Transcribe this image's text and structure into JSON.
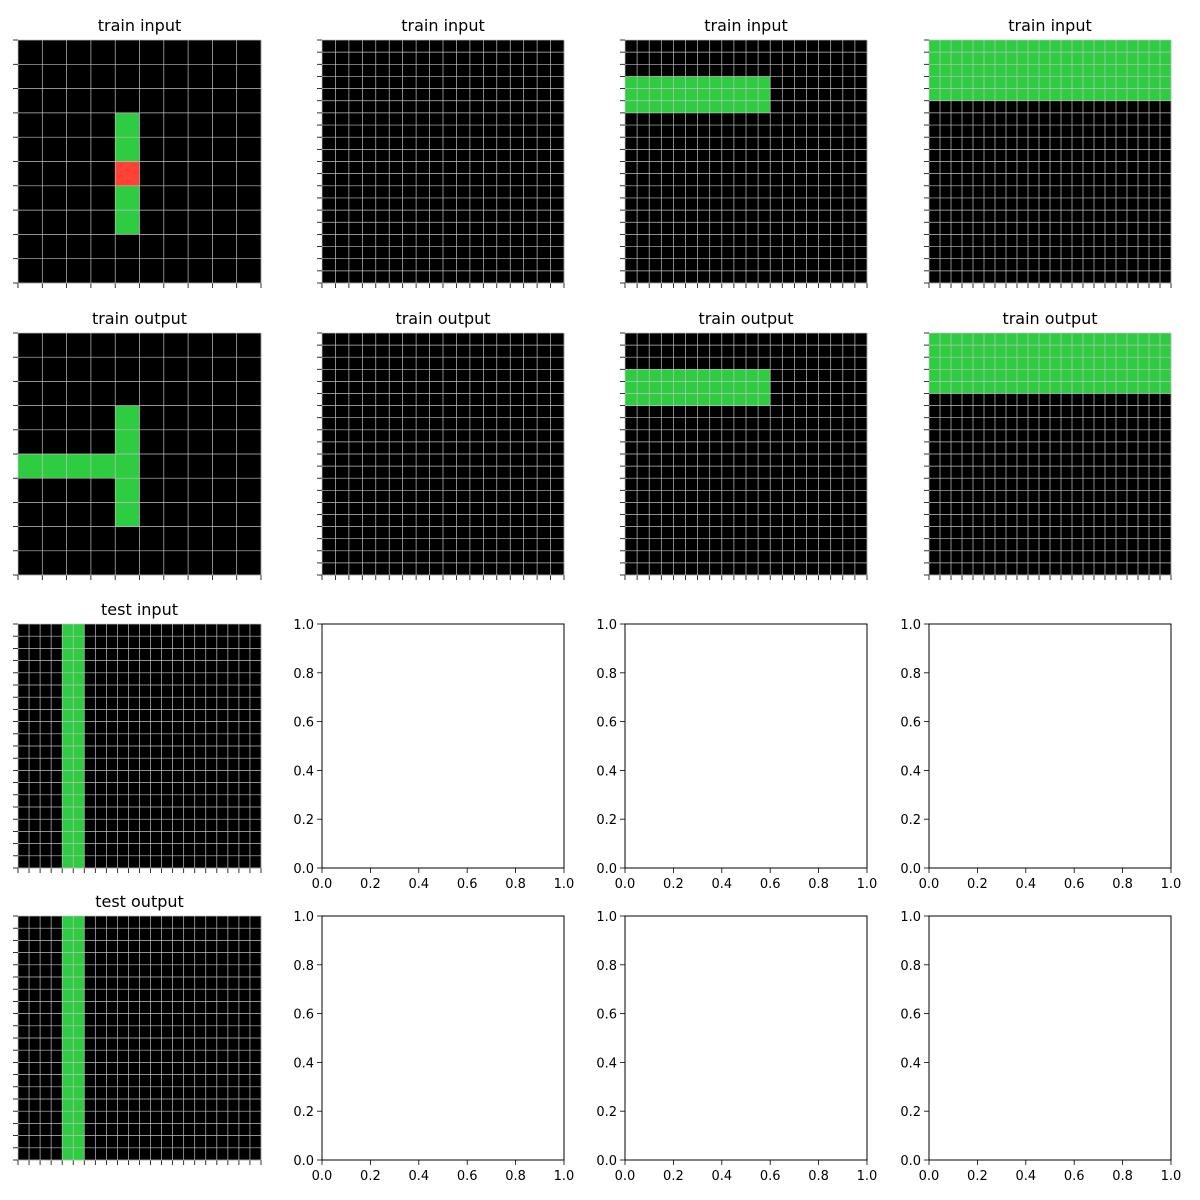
{
  "figure": {
    "background": "#ffffff",
    "colors": {
      "0": "#000000",
      "2": "#ff4136",
      "3": "#2ecc40"
    },
    "grid_line_color": "#c0c0c0",
    "empty_tick_labels": [
      "0.0",
      "0.2",
      "0.4",
      "0.6",
      "0.8",
      "1.0"
    ]
  },
  "chart_data": [
    {
      "type": "heatmap",
      "title": "train input",
      "grid": [
        "0000000000",
        "0000000000",
        "0000000000",
        "0000300000",
        "0000300000",
        "0000200000",
        "0000300000",
        "0000300000",
        "0000000000",
        "0000000000"
      ]
    },
    {
      "type": "heatmap",
      "title": "train input",
      "grid": [
        "000000000000000000",
        "000000000000000000",
        "000000000000000000",
        "000000000000000000",
        "000000000000000000",
        "000000000000000000",
        "000000000000000000",
        "000000000000000000",
        "000000000000000000",
        "000000000000000000",
        "000000000000000000",
        "000000000000000000",
        "000000000000000000",
        "000000000000000000",
        "000000000000000000",
        "000000000000000000",
        "000000000000000000",
        "000000000000000000",
        "000000000000000000",
        "000000000000000000"
      ]
    },
    {
      "type": "heatmap",
      "title": "train input",
      "grid": [
        "00000000000000000000",
        "00000000000000000000",
        "00000000000000000000",
        "33333333333300000000",
        "33333333333300000000",
        "33333333333300000000",
        "00000000000000000000",
        "00000000000000000000",
        "00000000000000000000",
        "00000000000000000000",
        "00000000000000000000",
        "00000000000000000000",
        "00000000000000000000",
        "00000000000000000000",
        "00000000000000000000",
        "00000000000000000000",
        "00000000000000000000",
        "00000000000000000000",
        "00000000000000000000",
        "00000000000000000000"
      ]
    },
    {
      "type": "heatmap",
      "title": "train input",
      "grid": [
        "3333333333333333333333",
        "3333333333333333333333",
        "3333333333333333333333",
        "3333333333333333333333",
        "3333333333333333333333",
        "0000000000000000000000",
        "0000000000000000000000",
        "0000000000000000000000",
        "0000000000000000000000",
        "0000000000000000000000",
        "0000000000000000000000",
        "0000000000000000000000",
        "0000000000000000000000",
        "0000000000000000000000",
        "0000000000000000000000",
        "0000000000000000000000",
        "0000000000000000000000",
        "0000000000000000000000",
        "0000000000000000000000",
        "0000000000000000000000"
      ]
    },
    {
      "type": "heatmap",
      "title": "train output",
      "grid": [
        "0000000000",
        "0000000000",
        "0000000000",
        "0000300000",
        "0000300000",
        "3333300000",
        "0000300000",
        "0000300000",
        "0000000000",
        "0000000000"
      ]
    },
    {
      "type": "heatmap",
      "title": "train output",
      "grid": [
        "000000000000000000",
        "000000000000000000",
        "000000000000000000",
        "000000000000000000",
        "000000000000000000",
        "000000000000000000",
        "000000000000000000",
        "000000000000000000",
        "000000000000000000",
        "000000000000000000",
        "000000000000000000",
        "000000000000000000",
        "000000000000000000",
        "000000000000000000",
        "000000000000000000",
        "000000000000000000",
        "000000000000000000",
        "000000000000000000",
        "000000000000000000",
        "000000000000000000"
      ]
    },
    {
      "type": "heatmap",
      "title": "train output",
      "grid": [
        "00000000000000000000",
        "00000000000000000000",
        "00000000000000000000",
        "33333333333300000000",
        "33333333333300000000",
        "33333333333300000000",
        "00000000000000000000",
        "00000000000000000000",
        "00000000000000000000",
        "00000000000000000000",
        "00000000000000000000",
        "00000000000000000000",
        "00000000000000000000",
        "00000000000000000000",
        "00000000000000000000",
        "00000000000000000000",
        "00000000000000000000",
        "00000000000000000000",
        "00000000000000000000",
        "00000000000000000000"
      ]
    },
    {
      "type": "heatmap",
      "title": "train output",
      "grid": [
        "3333333333333333333333",
        "3333333333333333333333",
        "3333333333333333333333",
        "3333333333333333333333",
        "3333333333333333333333",
        "0000000000000000000000",
        "0000000000000000000000",
        "0000000000000000000000",
        "0000000000000000000000",
        "0000000000000000000000",
        "0000000000000000000000",
        "0000000000000000000000",
        "0000000000000000000000",
        "0000000000000000000000",
        "0000000000000000000000",
        "0000000000000000000000",
        "0000000000000000000000",
        "0000000000000000000000",
        "0000000000000000000000",
        "0000000000000000000000"
      ]
    },
    {
      "type": "heatmap",
      "title": "test input",
      "grid": [
        "0000330000000000000000",
        "0000330000000000000000",
        "0000330000000000000000",
        "0000330000000000000000",
        "0000330000000000000000",
        "0000330000000000000000",
        "0000330000000000000000",
        "0000330000000000000000",
        "0000330000000000000000",
        "0000330000000000000000",
        "0000330000000000000000",
        "0000330000000000000000",
        "0000330000000000000000",
        "0000330000000000000000",
        "0000330000000000000000",
        "0000330000000000000000",
        "0000330000000000000000",
        "0000330000000000000000",
        "0000330000000000000000",
        "0000330000000000000000"
      ]
    },
    {
      "type": "empty"
    },
    {
      "type": "empty"
    },
    {
      "type": "empty"
    },
    {
      "type": "heatmap",
      "title": "test output",
      "grid": [
        "0000330000000000000000",
        "0000330000000000000000",
        "0000330000000000000000",
        "0000330000000000000000",
        "0000330000000000000000",
        "0000330000000000000000",
        "0000330000000000000000",
        "0000330000000000000000",
        "0000330000000000000000",
        "0000330000000000000000",
        "0000330000000000000000",
        "0000330000000000000000",
        "0000330000000000000000",
        "0000330000000000000000",
        "0000330000000000000000",
        "0000330000000000000000",
        "0000330000000000000000",
        "0000330000000000000000",
        "0000330000000000000000",
        "0000330000000000000000"
      ]
    },
    {
      "type": "empty"
    },
    {
      "type": "empty"
    },
    {
      "type": "empty"
    }
  ]
}
